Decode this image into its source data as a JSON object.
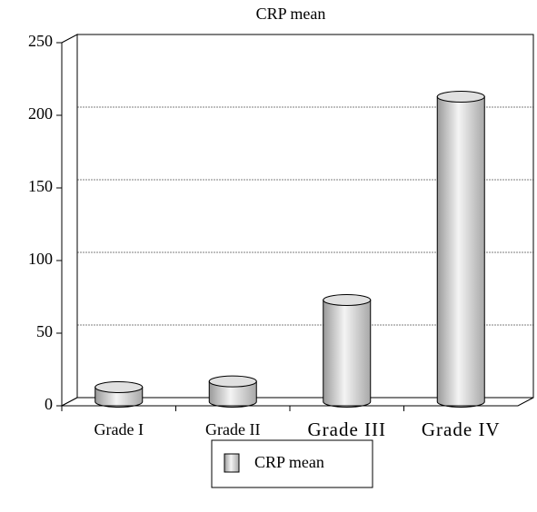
{
  "chart_data": {
    "type": "bar",
    "title": "CRP mean",
    "categories": [
      "Grade I",
      "Grade II",
      "Grade III",
      "Grade IV"
    ],
    "series": [
      {
        "name": "CRP mean",
        "color": "#c8c8c8",
        "values": [
          10,
          14,
          70,
          210
        ]
      }
    ],
    "ylim": [
      0,
      250
    ],
    "yticks": [
      0,
      50,
      100,
      150,
      200,
      250
    ],
    "grid": true,
    "legend": "bottom"
  }
}
